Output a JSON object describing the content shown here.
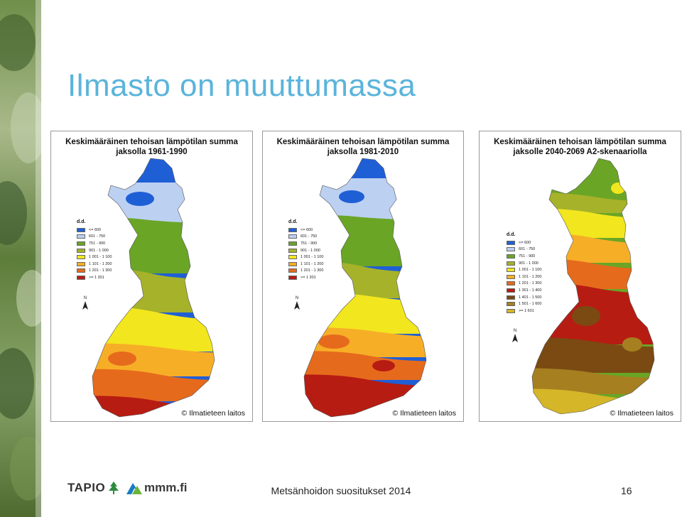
{
  "slide": {
    "title": "Ilmasto on muuttumassa",
    "footer": "Metsänhoidon suositukset 2014",
    "page_number": "16"
  },
  "logos": {
    "tapio": "TAPIO",
    "mmm": "mmm.fi"
  },
  "maps": [
    {
      "title_line1": "Keskimääräinen tehoisan lämpötilan summa",
      "title_line2": "jaksolla 1961-1990",
      "legend_title": "d.d.",
      "legend": [
        {
          "label": "<= 600",
          "color": "#1f5fd6"
        },
        {
          "label": "601 - 750",
          "color": "#bcd0f2"
        },
        {
          "label": "751 - 900",
          "color": "#6aa526"
        },
        {
          "label": "901 - 1 000",
          "color": "#a6b22a"
        },
        {
          "label": "1 001 - 1 100",
          "color": "#f2e61e"
        },
        {
          "label": "1 101 - 1 200",
          "color": "#f7ae27"
        },
        {
          "label": "1 201 - 1 300",
          "color": "#e66a1c"
        },
        {
          "label": ">= 1 301",
          "color": "#b71c12"
        }
      ],
      "north_label": "N",
      "credit": "© Ilmatieteen laitos"
    },
    {
      "title_line1": "Keskimääräinen tehoisan lämpötilan summa",
      "title_line2": "jaksolla 1981-2010",
      "legend_title": "d.d.",
      "legend": [
        {
          "label": "<= 600",
          "color": "#1f5fd6"
        },
        {
          "label": "601 - 750",
          "color": "#bcd0f2"
        },
        {
          "label": "751 - 900",
          "color": "#6aa526"
        },
        {
          "label": "901 - 1 000",
          "color": "#a6b22a"
        },
        {
          "label": "1 001 - 1 100",
          "color": "#f2e61e"
        },
        {
          "label": "1 101 - 1 200",
          "color": "#f7ae27"
        },
        {
          "label": "1 201 - 1 300",
          "color": "#e66a1c"
        },
        {
          "label": ">= 1 301",
          "color": "#b71c12"
        }
      ],
      "north_label": "N",
      "credit": "© Ilmatieteen laitos"
    },
    {
      "title_line1": "Keskimääräinen tehoisan lämpötilan summa",
      "title_line2": "jaksolle 2040-2069 A2-skenaariolla",
      "legend_title": "d.d.",
      "legend": [
        {
          "label": "<= 600",
          "color": "#1f5fd6"
        },
        {
          "label": "601 - 750",
          "color": "#bcd0f2"
        },
        {
          "label": "751 - 900",
          "color": "#6aa526"
        },
        {
          "label": "901 - 1 000",
          "color": "#a6b22a"
        },
        {
          "label": "1 001 - 1 100",
          "color": "#f2e61e"
        },
        {
          "label": "1 101 - 1 200",
          "color": "#f7ae27"
        },
        {
          "label": "1 201 - 1 300",
          "color": "#e66a1c"
        },
        {
          "label": "1 301 - 1 400",
          "color": "#b71c12"
        },
        {
          "label": "1 401 - 1 500",
          "color": "#7a4a12"
        },
        {
          "label": "1 501 - 1 600",
          "color": "#a57f20"
        },
        {
          "label": ">= 1 601",
          "color": "#d4b628"
        }
      ],
      "north_label": "N",
      "credit": "© Ilmatieteen laitos"
    }
  ]
}
